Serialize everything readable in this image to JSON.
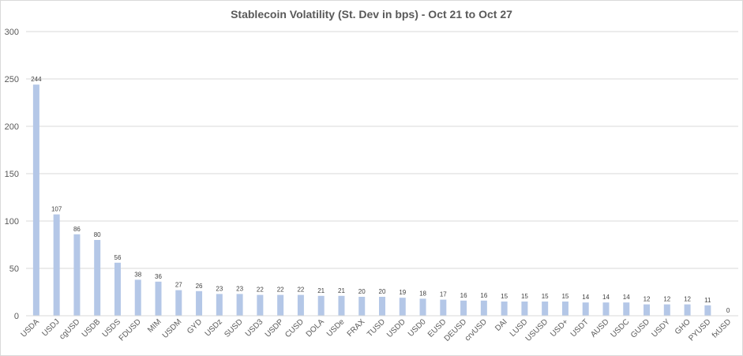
{
  "chart_data": {
    "type": "bar",
    "title": "Stablecoin Volatility (St. Dev in bps) - Oct 21 to Oct 27",
    "xlabel": "",
    "ylabel": "",
    "ylim": [
      0,
      300
    ],
    "yticks": [
      0,
      50,
      100,
      150,
      200,
      250,
      300
    ],
    "grid": true,
    "legend": "none",
    "bar_color": "#b4c7e7",
    "categories": [
      "USDA",
      "USDJ",
      "cgUSD",
      "USDB",
      "USDS",
      "FDUSD",
      "MIM",
      "USDM",
      "GYD",
      "USDz",
      "SUSD",
      "USD3",
      "USDP",
      "CUSD",
      "DOLA",
      "USDe",
      "FRAX",
      "TUSD",
      "USDD",
      "USD0",
      "EUSD",
      "DEUSD",
      "crvUSD",
      "DAI",
      "LUSD",
      "USUSD",
      "USD+",
      "USDT",
      "AUSD",
      "USDC",
      "GUSD",
      "USDY",
      "GHO",
      "PYUSD",
      "fxUSD"
    ],
    "values": [
      244,
      107,
      86,
      80,
      56,
      38,
      36,
      27,
      26,
      23,
      23,
      22,
      22,
      22,
      21,
      21,
      20,
      20,
      19,
      18,
      17,
      16,
      16,
      15,
      15,
      15,
      15,
      14,
      14,
      14,
      12,
      12,
      12,
      11,
      0
    ]
  }
}
